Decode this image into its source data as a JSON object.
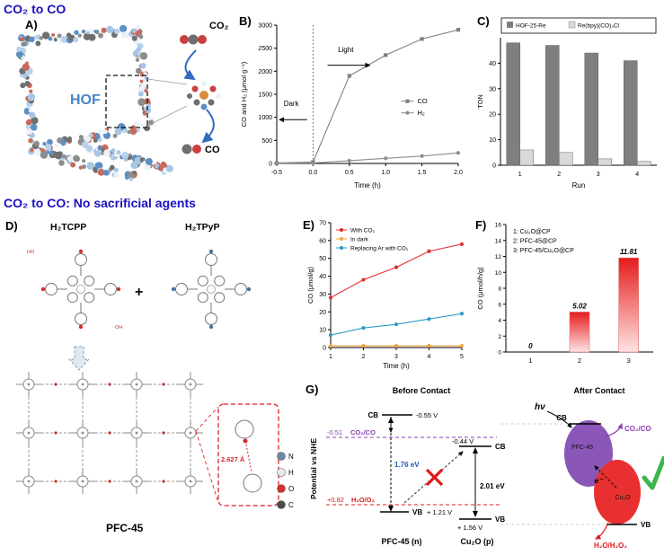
{
  "headings": {
    "top": "CO₂ to CO",
    "middle": "CO₂ to CO: No sacrificial agents"
  },
  "panel_a": {
    "label": "A)",
    "hof": "HOF",
    "co2": "CO₂",
    "co": "CO"
  },
  "panel_d": {
    "label": "D)",
    "molecule_left": "H₂TCPP",
    "molecule_right": "H₂TPyP",
    "plus": "+",
    "cooh_labels": [
      "HO",
      "OH"
    ],
    "distance": "2.627 Å",
    "framework_name": "PFC-45",
    "atom_legend": [
      {
        "symbol": "N",
        "color": "#6b87a8"
      },
      {
        "symbol": "H",
        "color": "#e8e8e8"
      },
      {
        "symbol": "O",
        "color": "#d03030"
      },
      {
        "symbol": "C",
        "color": "#4a4a4a"
      }
    ]
  },
  "panel_g": {
    "label": "G)",
    "y_axis": "Potential vs NHE",
    "before": "Before Contact",
    "after": "After Contact",
    "hv": "hν",
    "cb1": "CB",
    "cb1_v": "-0.55 V",
    "co2co_level": "-0.51",
    "co2co_label": "CO₂/CO",
    "cb2_v": "-0.44 V",
    "cb2": "CB",
    "gap1": "1.76 eV",
    "gap2": "2.01 eV",
    "h2o2_level": "+0.82",
    "h2o2_label": "H₂O/O₂",
    "vb1": "VB",
    "vb1_v": "+ 1.21 V",
    "vb2": "VB",
    "vb2_v": "+ 1.56 V",
    "mat1": "PFC-45 (n)",
    "mat2": "Cu₂O (p)",
    "after_cb": "CB",
    "after_vb": "VB",
    "after_mat1": "PFC-45",
    "after_mat2": "Cu₂O",
    "electron": "e⁻",
    "after_co2co": "CO₂/CO",
    "after_h2o2": "H₂O/H₂O₂"
  },
  "chart_data": [
    {
      "id": "B",
      "panel": "B)",
      "type": "line",
      "xlabel": "Time (h)",
      "ylabel": "CO and H₂ (μmol g⁻¹)",
      "xlim": [
        -0.5,
        2.0
      ],
      "ylim": [
        0,
        3000
      ],
      "xticks": [
        "-0.5",
        "0.0",
        "0.5",
        "1.0",
        "1.5",
        "2.0"
      ],
      "yticks": [
        0,
        500,
        1000,
        1500,
        2000,
        2500,
        3000
      ],
      "x": [
        -0.5,
        0.0,
        0.5,
        1.0,
        1.5,
        2.0
      ],
      "series": [
        {
          "name": "CO",
          "color": "#7f7f7f",
          "marker": "square",
          "values": [
            10,
            30,
            1900,
            2350,
            2700,
            2900
          ]
        },
        {
          "name": "H₂",
          "color": "#8c8c8c",
          "marker": "circle",
          "values": [
            5,
            10,
            60,
            110,
            160,
            230
          ]
        }
      ],
      "annotations": {
        "dark": "Dark",
        "light": "Light",
        "vline_x": 0.0
      },
      "legend_position": "middle-right",
      "grid": false
    },
    {
      "id": "C",
      "panel": "C)",
      "type": "bar",
      "xlabel": "Run",
      "ylabel": "TON",
      "categories": [
        "1",
        "2",
        "3",
        "4"
      ],
      "ylim": [
        0,
        50
      ],
      "yticks": [
        0,
        10,
        20,
        30,
        40
      ],
      "series": [
        {
          "name": "HOF-25-Re",
          "color": "#7f7f7f",
          "values": [
            48,
            47,
            44,
            41
          ]
        },
        {
          "name": "Re(bpy)(CO)₃Cl",
          "color": "#d9d9d9",
          "values": [
            6,
            5,
            2.5,
            1.5
          ]
        }
      ],
      "legend_position": "top",
      "grid": false
    },
    {
      "id": "E",
      "panel": "E)",
      "type": "line",
      "xlabel": "Time (h)",
      "ylabel": "CO (μmol/g)",
      "xlim": [
        1,
        5
      ],
      "ylim": [
        0,
        70
      ],
      "xticks": [
        "1",
        "2",
        "3",
        "4",
        "5"
      ],
      "yticks": [
        0,
        10,
        20,
        30,
        40,
        50,
        60,
        70
      ],
      "x": [
        1,
        2,
        3,
        4,
        5
      ],
      "series": [
        {
          "name": "With CO₂",
          "color": "#e03030",
          "marker": "circle",
          "values": [
            28,
            38,
            45,
            54,
            58
          ]
        },
        {
          "name": "In dark",
          "color": "#f0a543",
          "marker": "circle",
          "values": [
            1,
            1,
            1,
            1,
            1
          ]
        },
        {
          "name": "Replacing Ar with CO₂",
          "color": "#2e9bc6",
          "marker": "circle",
          "values": [
            7,
            11,
            13,
            16,
            19
          ]
        }
      ],
      "legend_position": "top-left",
      "grid": false
    },
    {
      "id": "F",
      "panel": "F)",
      "type": "bar",
      "xlabel": "",
      "ylabel": "CO (μmol/h/g)",
      "categories": [
        "1",
        "2",
        "3"
      ],
      "ylim": [
        0,
        16
      ],
      "yticks": [
        0,
        2,
        4,
        6,
        8,
        10,
        12,
        14,
        16
      ],
      "series": [
        {
          "color": "#e41c1c",
          "values": [
            0,
            5.02,
            11.81
          ]
        }
      ],
      "bar_labels": [
        "0",
        "5.02",
        "11.81"
      ],
      "legend_lines": [
        "1: Cu₂O@CP",
        "2: PFC-45@CP",
        "3: PFC-45/Cu₂O@CP"
      ],
      "grid": false
    }
  ]
}
